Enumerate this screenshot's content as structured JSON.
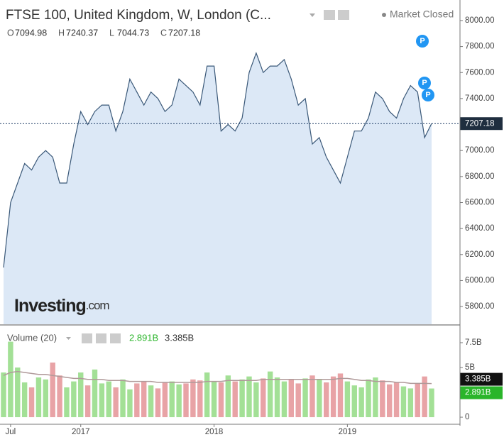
{
  "header": {
    "title": "FTSE 100, United Kingdom, W, London (C...",
    "status": "Market Closed",
    "ohlc": [
      {
        "key": "O",
        "value": "7094.98"
      },
      {
        "key": "H",
        "value": "7240.37"
      },
      {
        "key": "L",
        "value": "7044.73"
      },
      {
        "key": "C",
        "value": "7207.18"
      }
    ],
    "logo": "Investing",
    "logo_suffix": ".com",
    "markers": [
      "P",
      "P",
      "P"
    ]
  },
  "chart_data": [
    {
      "type": "area",
      "name": "FTSE 100",
      "color": "#3a5878",
      "fill": "#dce8f6",
      "categories": [
        null,
        "Jul",
        null,
        null,
        null,
        null,
        null,
        null,
        null,
        null,
        null,
        "2017",
        null,
        null,
        null,
        null,
        null,
        null,
        null,
        null,
        null,
        null,
        null,
        null,
        null,
        null,
        null,
        null,
        null,
        null,
        "2018",
        null,
        null,
        null,
        null,
        null,
        null,
        null,
        null,
        null,
        null,
        null,
        null,
        null,
        null,
        null,
        null,
        null,
        null,
        "2019",
        null,
        null,
        null,
        null,
        null,
        null,
        null,
        null,
        null,
        null,
        null,
        null
      ],
      "values": [
        6100,
        6600,
        6750,
        6900,
        6850,
        6950,
        7000,
        6950,
        6750,
        6750,
        7050,
        7300,
        7200,
        7300,
        7350,
        7350,
        7150,
        7300,
        7550,
        7450,
        7350,
        7450,
        7400,
        7300,
        7350,
        7550,
        7500,
        7450,
        7350,
        7650,
        7650,
        7150,
        7200,
        7150,
        7250,
        7600,
        7750,
        7600,
        7650,
        7650,
        7700,
        7550,
        7350,
        7400,
        7050,
        7100,
        6950,
        6850,
        6750,
        6950,
        7150,
        7150,
        7250,
        7450,
        7400,
        7300,
        7250,
        7400,
        7500,
        7450,
        7100,
        7207.18
      ],
      "value_labels": {
        "last": "7207.18"
      },
      "ylim": [
        5664,
        8158
      ],
      "yticks": [
        {
          "value": 5800,
          "label": "5800.00"
        },
        {
          "value": 6000,
          "label": "6000.00"
        },
        {
          "value": 6200,
          "label": "6200.00"
        },
        {
          "value": 6400,
          "label": "6400.00"
        },
        {
          "value": 6600,
          "label": "6600.00"
        },
        {
          "value": 6800,
          "label": "6800.00"
        },
        {
          "value": 7000,
          "label": "7000.00"
        },
        {
          "value": 7200,
          "label": "7200.00"
        },
        {
          "value": 7400,
          "label": "7400.00"
        },
        {
          "value": 7600,
          "label": "7600.00"
        },
        {
          "value": 7800,
          "label": "7800.00"
        },
        {
          "value": 8000,
          "label": "8000.00"
        }
      ]
    },
    {
      "type": "bar",
      "title": "Volume (20)",
      "series": [
        {
          "name": "Volume",
          "up_color": "#a3e096",
          "down_color": "#e8a3a6",
          "values": [
            4.5,
            7.6,
            5.0,
            3.5,
            3.0,
            4.0,
            3.8,
            5.5,
            4.2,
            3.0,
            3.6,
            4.5,
            3.2,
            4.8,
            3.4,
            3.6,
            3.0,
            3.8,
            2.8,
            3.4,
            3.6,
            3.2,
            2.9,
            3.5,
            3.6,
            3.3,
            3.4,
            3.8,
            3.7,
            4.5,
            3.6,
            3.5,
            4.2,
            3.6,
            3.8,
            4.1,
            3.5,
            3.9,
            4.6,
            4.0,
            3.6,
            3.8,
            3.4,
            3.9,
            4.2,
            3.8,
            3.5,
            4.1,
            4.4,
            3.6,
            3.2,
            3.0,
            3.8,
            4.0,
            3.7,
            3.3,
            3.5,
            3.1,
            2.9,
            3.4,
            4.1,
            2.891
          ],
          "last_label": "2.891B"
        },
        {
          "name": "MA",
          "color": "#b09a9a",
          "values": [
            4.2,
            4.5,
            4.6,
            4.5,
            4.4,
            4.3,
            4.3,
            4.2,
            4.1,
            4.0,
            3.9,
            3.9,
            3.8,
            3.8,
            3.8,
            3.7,
            3.7,
            3.7,
            3.6,
            3.6,
            3.6,
            3.6,
            3.5,
            3.5,
            3.5,
            3.5,
            3.5,
            3.5,
            3.5,
            3.6,
            3.6,
            3.6,
            3.7,
            3.7,
            3.7,
            3.7,
            3.7,
            3.8,
            3.8,
            3.8,
            3.8,
            3.8,
            3.8,
            3.8,
            3.8,
            3.8,
            3.8,
            3.8,
            3.9,
            3.9,
            3.8,
            3.7,
            3.7,
            3.6,
            3.6,
            3.6,
            3.5,
            3.5,
            3.4,
            3.4,
            3.4,
            3.385
          ],
          "last_label": "3.385B"
        }
      ],
      "ylim": [
        -0.64,
        9.0
      ],
      "yticks": [
        0,
        {
          "value": 5,
          "label": "5B"
        },
        {
          "value": 7.5,
          "label": "7.5B"
        }
      ]
    }
  ]
}
